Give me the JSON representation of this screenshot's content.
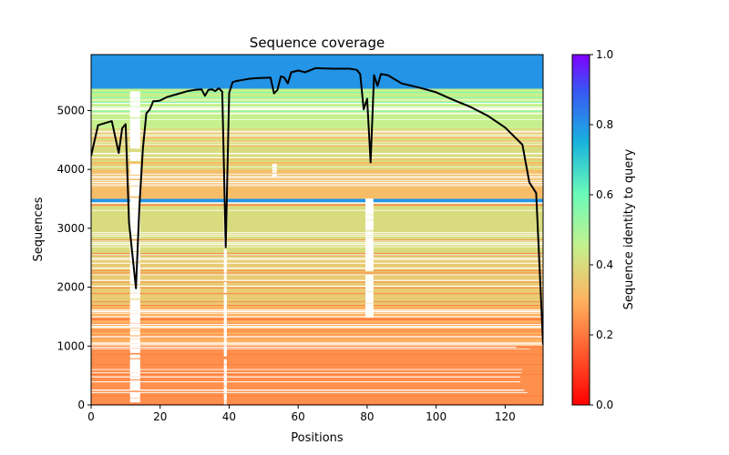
{
  "chart_data": {
    "type": "heatmap",
    "title": "Sequence coverage",
    "xlabel": "Positions",
    "ylabel": "Sequences",
    "xlim": [
      0,
      131
    ],
    "ylim": [
      0,
      5950
    ],
    "xticks": [
      0,
      20,
      40,
      60,
      80,
      100,
      120
    ],
    "yticks": [
      0,
      1000,
      2000,
      3000,
      4000,
      5000
    ],
    "grid": false,
    "colorbar": {
      "label": "Sequence identity to query",
      "colormap": "rainbow_r",
      "range": [
        0.0,
        1.0
      ],
      "ticks": [
        0.0,
        0.2,
        0.4,
        0.6,
        0.8,
        1.0
      ]
    },
    "coverage_line": {
      "color": "#000000",
      "x": [
        0,
        2,
        6,
        8,
        9,
        10,
        11,
        13,
        14,
        15,
        16,
        17,
        18,
        19,
        20,
        22,
        25,
        28,
        30,
        32,
        33,
        34,
        35,
        36,
        37,
        38,
        39,
        40,
        41,
        42,
        44,
        46,
        48,
        52,
        53,
        54,
        55,
        56,
        57,
        58,
        60,
        62,
        65,
        70,
        75,
        77,
        78,
        79,
        80,
        81,
        82,
        83,
        84,
        86,
        90,
        95,
        100,
        105,
        110,
        115,
        120,
        125,
        127,
        129,
        131
      ],
      "y": [
        4230,
        4750,
        4820,
        4280,
        4700,
        4770,
        3100,
        1980,
        3380,
        4350,
        4950,
        5020,
        5160,
        5160,
        5170,
        5230,
        5280,
        5330,
        5350,
        5360,
        5250,
        5350,
        5360,
        5330,
        5380,
        5320,
        2680,
        5300,
        5480,
        5500,
        5520,
        5540,
        5550,
        5560,
        5290,
        5350,
        5580,
        5560,
        5460,
        5650,
        5680,
        5650,
        5720,
        5710,
        5710,
        5690,
        5620,
        5020,
        5200,
        4120,
        5600,
        5420,
        5620,
        5600,
        5460,
        5390,
        5310,
        5180,
        5060,
        4910,
        4710,
        4420,
        3780,
        3600,
        1020
      ]
    },
    "identity_bands": [
      {
        "y0": 5370,
        "y1": 5950,
        "identity": 0.8
      },
      {
        "y0": 4700,
        "y1": 5370,
        "identity": 0.45
      },
      {
        "y0": 4000,
        "y1": 4700,
        "identity": 0.4
      },
      {
        "y0": 3500,
        "y1": 4000,
        "identity": 0.33
      },
      {
        "y0": 3440,
        "y1": 3500,
        "identity": 0.8
      },
      {
        "y0": 2500,
        "y1": 3440,
        "identity": 0.4
      },
      {
        "y0": 1700,
        "y1": 2500,
        "identity": 0.36
      },
      {
        "y0": 1000,
        "y1": 1700,
        "identity": 0.3
      },
      {
        "y0": 0,
        "y1": 1000,
        "identity": 0.24
      }
    ]
  }
}
